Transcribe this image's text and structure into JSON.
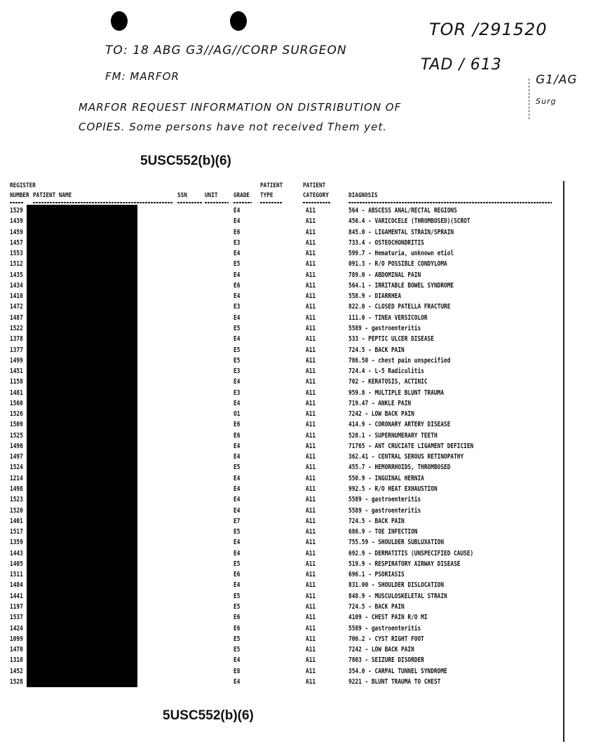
{
  "handwritten": {
    "tor": "TOR /291520",
    "tad": "TAD / 613",
    "routing": "G1/AG",
    "routing2": "Surg",
    "to_line": "TO: 18 ABG G3//AG//CORP SURGEON",
    "from_line": "FM: MARFOR",
    "message_line1": "MARFOR REQUEST INFORMATION ON DISTRIBUTION OF",
    "message_line2": "COPIES. Some persons have not received Them yet."
  },
  "redaction_label_top": "5USC552(b)(6)",
  "redaction_label_bottom": "5USC552(b)(6)",
  "table": {
    "headers": {
      "register_1": "REGISTER",
      "register_2": "NUMBER",
      "name": "PATIENT NAME",
      "ssn": "SSN",
      "unit": "UNIT",
      "grade": "GRADE",
      "type_1": "PATIENT",
      "type_2": "TYPE",
      "category_1": "PATIENT",
      "category_2": "CATEGORY",
      "diagnosis": "DIAGNOSIS"
    },
    "rows": [
      {
        "reg": "1529",
        "grade": "E4",
        "cat": "A11",
        "diag": "564 - ABSCESS ANAL/RECTAL REGIONS"
      },
      {
        "reg": "1439",
        "grade": "E4",
        "cat": "A11",
        "diag": "456.4 - VARICOCELE (THROMBOSED)(SCROT"
      },
      {
        "reg": "1459",
        "grade": "E6",
        "cat": "A11",
        "diag": "845.0 - LIGAMENTAL STRAIN/SPRAIN"
      },
      {
        "reg": "1457",
        "grade": "E3",
        "cat": "A11",
        "diag": "733.4 - OSTEOCHONDRITIS"
      },
      {
        "reg": "1553",
        "grade": "E4",
        "cat": "A11",
        "diag": "599.7 - Hematuria, unknown etiol"
      },
      {
        "reg": "1512",
        "grade": "E5",
        "cat": "A11",
        "diag": "091.3 - R/O POSSIBLE CONDYLOMA"
      },
      {
        "reg": "1435",
        "grade": "E4",
        "cat": "A11",
        "diag": "789.0 - ABDOMINAL PAIN"
      },
      {
        "reg": "1434",
        "grade": "E6",
        "cat": "A11",
        "diag": "564.1 - IRRITABLE BOWEL SYNDROME"
      },
      {
        "reg": "1410",
        "grade": "E4",
        "cat": "A11",
        "diag": "558.9 - DIARRHEA"
      },
      {
        "reg": "1472",
        "grade": "E3",
        "cat": "A11",
        "diag": "822.0 - CLOSED PATELLA FRACTURE"
      },
      {
        "reg": "1487",
        "grade": "E4",
        "cat": "A11",
        "diag": "111.0 - TINEA VERSICOLOR"
      },
      {
        "reg": "1522",
        "grade": "E5",
        "cat": "A11",
        "diag": "5589 - gastroenteritis"
      },
      {
        "reg": "1378",
        "grade": "E4",
        "cat": "A11",
        "diag": "533 - PEPTIC ULCER DISEASE"
      },
      {
        "reg": "1377",
        "grade": "E5",
        "cat": "A11",
        "diag": "724.5 - BACK PAIN"
      },
      {
        "reg": "1499",
        "grade": "E5",
        "cat": "A11",
        "diag": "786.50 - chest pain unspecified"
      },
      {
        "reg": "1451",
        "grade": "E3",
        "cat": "A11",
        "diag": "724.4 - L-5 Radiculitis"
      },
      {
        "reg": "1158",
        "grade": "E4",
        "cat": "A11",
        "diag": "702 - KERATOSIS, ACTINIC"
      },
      {
        "reg": "1481",
        "grade": "E3",
        "cat": "A11",
        "diag": "959.8 - MULTIPLE BLUNT TRAUMA"
      },
      {
        "reg": "1560",
        "grade": "E4",
        "cat": "A11",
        "diag": "719.47 - ANKLE PAIN"
      },
      {
        "reg": "1526",
        "grade": "O1",
        "cat": "A11",
        "diag": "7242 - LOW BACK PAIN"
      },
      {
        "reg": "1509",
        "grade": "E6",
        "cat": "A11",
        "diag": "414.9 - CORONARY ARTERY DISEASE"
      },
      {
        "reg": "1525",
        "grade": "E6",
        "cat": "A11",
        "diag": "520.1 - SUPERNUMERARY TEETH"
      },
      {
        "reg": "1496",
        "grade": "E4",
        "cat": "A11",
        "diag": "71765 - ANT CRUCIATE LIGAMENT DEFICIEN"
      },
      {
        "reg": "1497",
        "grade": "E4",
        "cat": "A11",
        "diag": "362.41 - CENTRAL SEROUS RETINOPATHY"
      },
      {
        "reg": "1524",
        "grade": "E5",
        "cat": "A11",
        "diag": "455.7 - HEMORRHOIDS, THROMBOSED"
      },
      {
        "reg": "1214",
        "grade": "E4",
        "cat": "A11",
        "diag": "550.9 - INGUINAL HERNIA"
      },
      {
        "reg": "1498",
        "grade": "E4",
        "cat": "A11",
        "diag": "992.5 - R/O HEAT EXHAUSTION"
      },
      {
        "reg": "1523",
        "grade": "E4",
        "cat": "A11",
        "diag": "5589 - gastroenteritis"
      },
      {
        "reg": "1520",
        "grade": "E4",
        "cat": "A11",
        "diag": "5589 - gastroenteritis"
      },
      {
        "reg": "1401",
        "grade": "E7",
        "cat": "A11",
        "diag": "724.5 - BACK PAIN"
      },
      {
        "reg": "1517",
        "grade": "E5",
        "cat": "A11",
        "diag": "686.9 - TOE INFECTION"
      },
      {
        "reg": "1359",
        "grade": "E4",
        "cat": "A11",
        "diag": "755.59 - SHOULDER SUBLUXATION"
      },
      {
        "reg": "1443",
        "grade": "E4",
        "cat": "A11",
        "diag": "692.9 - DERMATITIS (UNSPECIFIED CAUSE)"
      },
      {
        "reg": "1405",
        "grade": "E5",
        "cat": "A11",
        "diag": "519.9 - RESPIRATORY AIRWAY DISEASE"
      },
      {
        "reg": "1511",
        "grade": "E6",
        "cat": "A11",
        "diag": "696.1 - PSORIASIS"
      },
      {
        "reg": "1484",
        "grade": "E4",
        "cat": "A11",
        "diag": "831.00 - SHOULDER DISLOCATION"
      },
      {
        "reg": "1441",
        "grade": "E5",
        "cat": "A11",
        "diag": "848.9 - MUSCULOSKELETAL STRAIN"
      },
      {
        "reg": "1197",
        "grade": "E5",
        "cat": "A11",
        "diag": "724.5 - BACK PAIN"
      },
      {
        "reg": "1537",
        "grade": "E6",
        "cat": "A11",
        "diag": "4109 - CHEST PAIN R/O MI"
      },
      {
        "reg": "1424",
        "grade": "E6",
        "cat": "A11",
        "diag": "5589 - gastroenteritis"
      },
      {
        "reg": "1099",
        "grade": "E5",
        "cat": "A11",
        "diag": "706.2 - CYST RIGHT FOOT"
      },
      {
        "reg": "1470",
        "grade": "E5",
        "cat": "A11",
        "diag": "7242 - LOW BACK PAIN"
      },
      {
        "reg": "1310",
        "grade": "E4",
        "cat": "A11",
        "diag": "7803 - SEIZURE DISORDER"
      },
      {
        "reg": "1452",
        "grade": "E8",
        "cat": "A11",
        "diag": "354.0 - CARPAL TUNNEL SYNDROME"
      },
      {
        "reg": "1528",
        "grade": "E4",
        "cat": "A11",
        "diag": "9221 - BLUNT TRAUMA TO CHEST"
      }
    ]
  }
}
